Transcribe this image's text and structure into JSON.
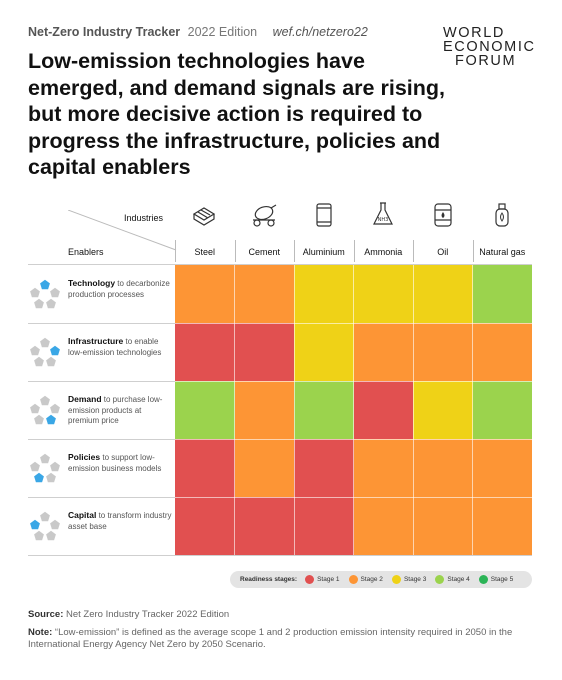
{
  "header": {
    "title": "Net-Zero Industry Tracker",
    "edition": "2022 Edition",
    "url": "wef.ch/netzero22"
  },
  "logo": {
    "line1": "WORLD",
    "line2": "ECONOMIC",
    "line3": "FORUM"
  },
  "headline": "Low-emission technologies have emerged, and demand signals are rising, but more decisive action is required to progress the infrastructure, policies and capital enablers",
  "chart_data": {
    "type": "heatmap",
    "column_axis_label": "Industries",
    "row_axis_label": "Enablers",
    "columns": [
      "Steel",
      "Cement",
      "Aluminium",
      "Ammonia",
      "Oil",
      "Natural gas"
    ],
    "column_icons": [
      "steel-icon",
      "cement-mixer-icon",
      "aluminium-can-icon",
      "ammonia-flask-icon",
      "oil-barrel-icon",
      "gas-cylinder-icon"
    ],
    "rows": [
      {
        "bold": "Technology",
        "rest": " to decarbonize production processes"
      },
      {
        "bold": "Infrastructure",
        "rest": " to enable low-emission technologies"
      },
      {
        "bold": "Demand",
        "rest": " to purchase low-emission products at premium price"
      },
      {
        "bold": "Policies",
        "rest": " to support low-emission business models"
      },
      {
        "bold": "Capital",
        "rest": " to transform industry asset base"
      }
    ],
    "values": [
      [
        2,
        2,
        3,
        3,
        3,
        4
      ],
      [
        1,
        1,
        3,
        2,
        2,
        2
      ],
      [
        4,
        2,
        4,
        1,
        3,
        4
      ],
      [
        1,
        2,
        1,
        2,
        2,
        2
      ],
      [
        1,
        1,
        1,
        2,
        2,
        2
      ]
    ],
    "legend_title": "Readiness stages:",
    "stages": [
      {
        "stage": 1,
        "label": "Stage 1",
        "color": "#e15050"
      },
      {
        "stage": 2,
        "label": "Stage 2",
        "color": "#fd9535"
      },
      {
        "stage": 3,
        "label": "Stage 3",
        "color": "#efd217"
      },
      {
        "stage": 4,
        "label": "Stage 4",
        "color": "#9bd34d"
      },
      {
        "stage": 5,
        "label": "Stage 5",
        "color": "#2cb457"
      }
    ]
  },
  "footer": {
    "source_label": "Source:",
    "source_text": " Net Zero Industry Tracker 2022 Edition",
    "note_label": "Note:",
    "note_text": " “Low-emission” is defined as the average scope 1 and 2 production emission intensity required in 2050 in the International Energy Agency Net Zero by 2050 Scenario."
  },
  "colors": {
    "pentagon_highlight": "#3aa7e6",
    "pentagon_base": "#c9c9c9"
  }
}
